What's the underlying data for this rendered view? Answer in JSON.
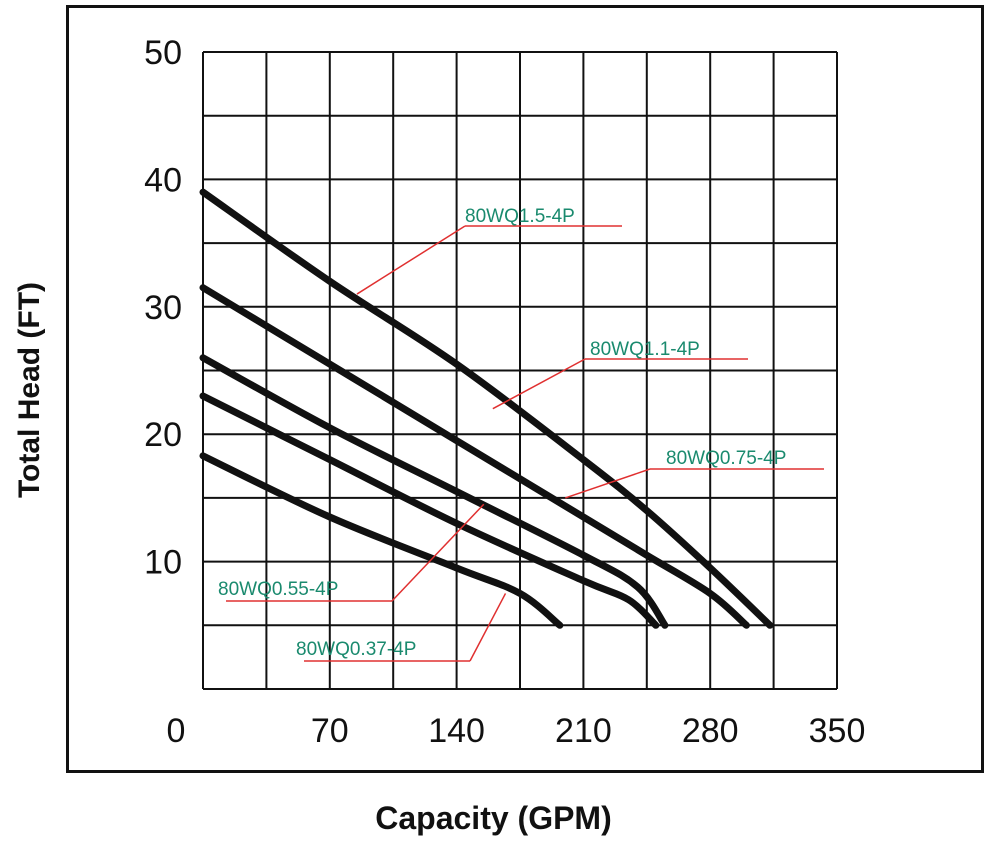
{
  "chart_data": {
    "type": "line",
    "xlabel": "Capacity (GPM)",
    "ylabel": "Total Head (FT)",
    "xlim": [
      0,
      350
    ],
    "ylim": [
      0,
      50
    ],
    "x_ticks": [
      "0",
      "70",
      "140",
      "210",
      "280",
      "350"
    ],
    "y_ticks": [
      "10",
      "20",
      "30",
      "40",
      "50"
    ],
    "grid": true,
    "series": [
      {
        "name": "80WQ1.5-4P",
        "points": [
          [
            0,
            39
          ],
          [
            70,
            32
          ],
          [
            140,
            25.5
          ],
          [
            210,
            18
          ],
          [
            245,
            14
          ],
          [
            280,
            9.5
          ],
          [
            313,
            5
          ]
        ]
      },
      {
        "name": "80WQ1.1-4P",
        "points": [
          [
            0,
            31.5
          ],
          [
            70,
            25.5
          ],
          [
            140,
            19.5
          ],
          [
            210,
            13.5
          ],
          [
            245,
            10.5
          ],
          [
            280,
            7.5
          ],
          [
            300,
            5
          ]
        ]
      },
      {
        "name": "80WQ0.75-4P",
        "points": [
          [
            0,
            26
          ],
          [
            70,
            20.5
          ],
          [
            140,
            15.5
          ],
          [
            210,
            10.5
          ],
          [
            240,
            8
          ],
          [
            255,
            5
          ]
        ]
      },
      {
        "name": "80WQ0.55-4P",
        "points": [
          [
            0,
            23
          ],
          [
            70,
            18
          ],
          [
            140,
            13
          ],
          [
            210,
            8.5
          ],
          [
            235,
            7
          ],
          [
            250,
            5
          ]
        ]
      },
      {
        "name": "80WQ0.37-4P",
        "points": [
          [
            0,
            18.3
          ],
          [
            70,
            13.5
          ],
          [
            140,
            9.5
          ],
          [
            175,
            7.5
          ],
          [
            197,
            5
          ]
        ]
      }
    ],
    "annotations": [
      {
        "label": "80WQ1.5-4P",
        "pointer_at": [
          85,
          31
        ]
      },
      {
        "label": "80WQ1.1-4P",
        "pointer_at": [
          160,
          22
        ]
      },
      {
        "label": "80WQ0.75-4P",
        "pointer_at": [
          200,
          15
        ]
      },
      {
        "label": "80WQ0.55-4P",
        "pointer_at": [
          155,
          14.5
        ]
      },
      {
        "label": "80WQ0.37-4P",
        "pointer_at": [
          167,
          7.5
        ]
      }
    ],
    "colors": {
      "curve": "#111111",
      "grid": "#111111",
      "annotation_text": "#1a8a6e",
      "annotation_line": "#e03030"
    }
  }
}
